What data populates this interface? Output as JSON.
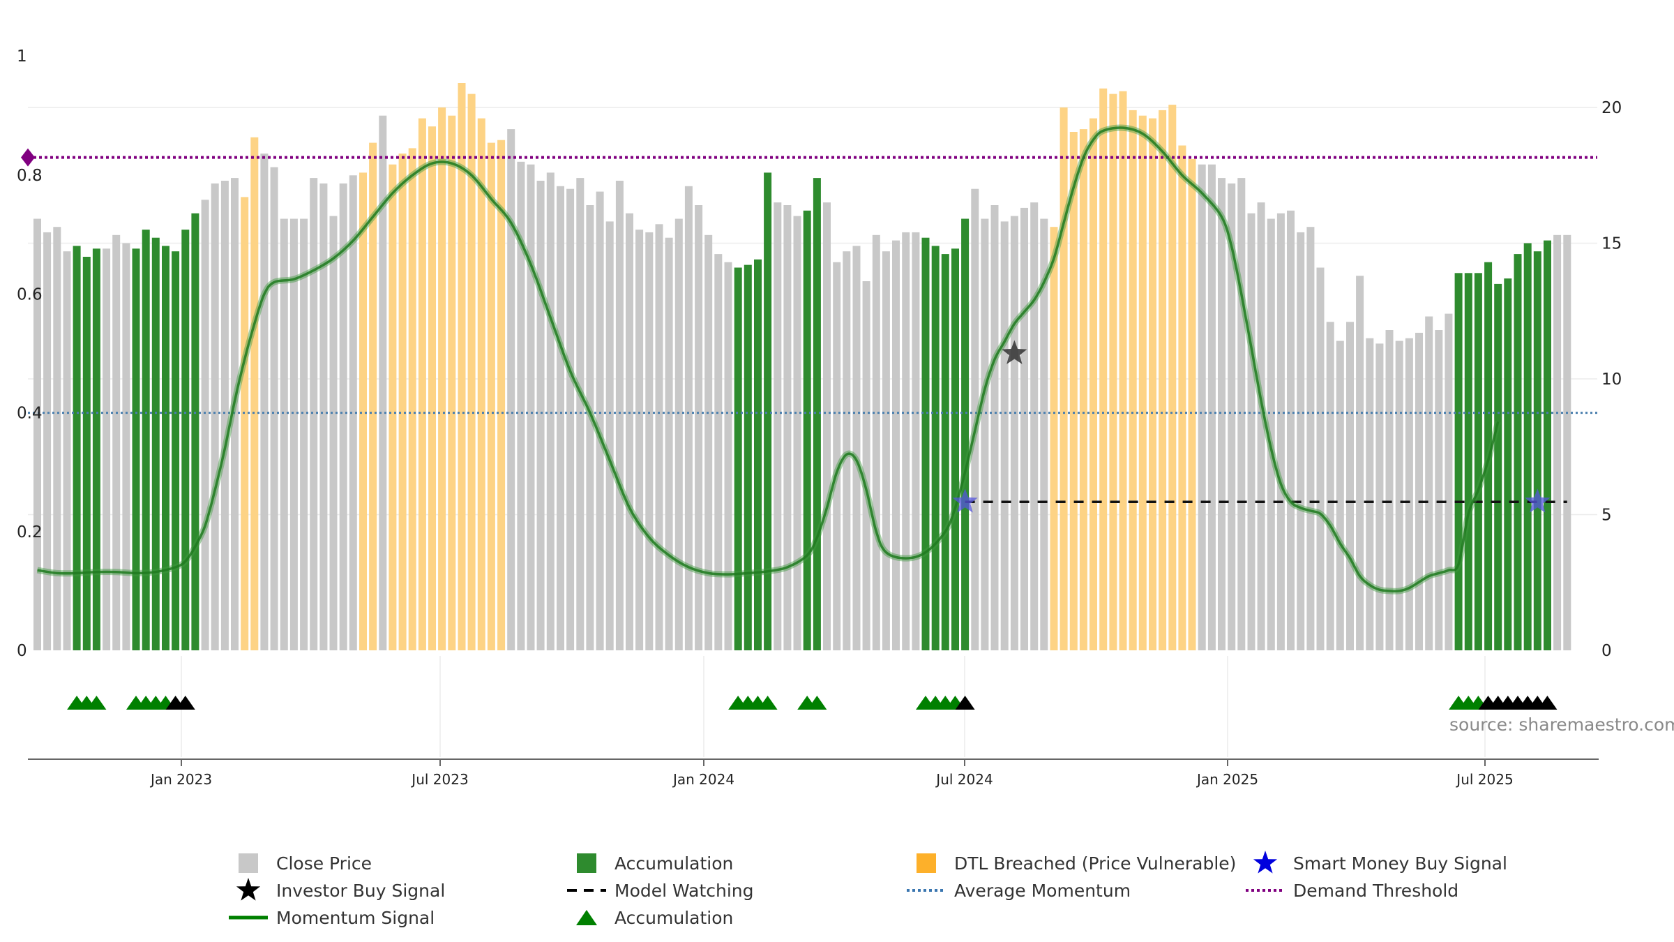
{
  "chart_data": {
    "type": "bar",
    "title": "",
    "x_tick_labels": [
      "Jan 2023",
      "Jul 2023",
      "Jan 2024",
      "Jul 2024",
      "Jan 2025",
      "Jul 2025"
    ],
    "left_axis": {
      "range": [
        0,
        1
      ],
      "tick_labels": [
        "0",
        "0.2",
        "0.4",
        "0.6",
        "0.8",
        "1"
      ]
    },
    "right_axis": {
      "range": [
        0,
        22
      ],
      "tick_labels": [
        "0",
        "5",
        "10",
        "15",
        "20"
      ]
    },
    "colors": {
      "close": "#c8c8c8",
      "accumulation": "#2e8b2e",
      "dtl": "#fdd385",
      "momentum": "#1f7a1f",
      "avg": "#4a7fae",
      "demand": "#800080",
      "smart_money": "#0000cc"
    },
    "close_price": [
      15.9,
      15.4,
      15.6,
      14.7,
      14.9,
      14.5,
      14.8,
      14.8,
      15.3,
      15.0,
      14.8,
      15.5,
      15.2,
      14.9,
      14.7,
      15.5,
      16.1,
      16.6,
      17.2,
      17.3,
      17.4,
      16.7,
      18.9,
      18.3,
      17.8,
      15.9,
      15.9,
      15.9,
      17.4,
      17.2,
      16.0,
      17.2,
      17.5,
      17.6,
      18.7,
      19.7,
      17.9,
      18.3,
      18.5,
      19.6,
      19.3,
      20.0,
      19.7,
      20.9,
      20.5,
      19.6,
      18.7,
      18.8,
      19.2,
      18.0,
      17.9,
      17.3,
      17.6,
      17.1,
      17.0,
      17.4,
      16.4,
      16.9,
      15.8,
      17.3,
      16.1,
      15.5,
      15.4,
      15.7,
      15.2,
      15.9,
      17.1,
      16.4,
      15.3,
      14.6,
      14.3,
      14.1,
      14.2,
      14.4,
      17.6,
      16.5,
      16.4,
      16.0,
      16.2,
      17.4,
      16.5,
      14.3,
      14.7,
      14.9,
      13.6,
      15.3,
      14.7,
      15.1,
      15.4,
      15.4,
      15.2,
      14.9,
      14.6,
      14.8,
      15.9,
      17.0,
      15.9,
      16.4,
      15.8,
      16.0,
      16.3,
      16.5,
      15.9,
      15.6,
      20.0,
      19.1,
      19.2,
      19.6,
      20.7,
      20.5,
      20.6,
      19.9,
      19.7,
      19.6,
      19.9,
      20.1,
      18.6,
      18.1,
      17.9,
      17.9,
      17.4,
      17.2,
      17.4,
      16.1,
      16.5,
      15.9,
      16.1,
      16.2,
      15.4,
      15.6,
      14.1,
      12.1,
      11.4,
      12.1,
      13.8,
      11.5,
      11.3,
      11.8,
      11.4,
      11.5,
      11.7,
      12.3,
      11.8,
      12.4,
      13.9,
      13.9,
      13.9,
      14.3,
      13.5,
      13.7,
      14.6,
      15.0,
      14.7,
      15.1,
      15.3,
      15.3
    ],
    "accumulation_bars": [
      4,
      5,
      6,
      10,
      11,
      12,
      13,
      14,
      15,
      16,
      71,
      72,
      73,
      74,
      78,
      79,
      90,
      91,
      92,
      93,
      94
    ],
    "dtl_bars": [
      21,
      22,
      33,
      34,
      36,
      37,
      38,
      39,
      40,
      41,
      42,
      43,
      44,
      45,
      46,
      47,
      103,
      104,
      105,
      106,
      107,
      108,
      109,
      110,
      111,
      112,
      113,
      114,
      115,
      116,
      117
    ],
    "late_accumulation_bars": [
      144,
      145,
      146,
      147,
      148,
      149,
      150,
      151,
      152,
      153
    ],
    "momentum_signal": [
      [
        0,
        0.135
      ],
      [
        2,
        0.13
      ],
      [
        4,
        0.13
      ],
      [
        6,
        0.132
      ],
      [
        8,
        0.132
      ],
      [
        10,
        0.13
      ],
      [
        12,
        0.132
      ],
      [
        14,
        0.14
      ],
      [
        15,
        0.15
      ],
      [
        16,
        0.175
      ],
      [
        17,
        0.21
      ],
      [
        18,
        0.27
      ],
      [
        19,
        0.34
      ],
      [
        20,
        0.42
      ],
      [
        21,
        0.49
      ],
      [
        22,
        0.55
      ],
      [
        23,
        0.6
      ],
      [
        24,
        0.62
      ],
      [
        26,
        0.625
      ],
      [
        28,
        0.64
      ],
      [
        30,
        0.66
      ],
      [
        32,
        0.69
      ],
      [
        34,
        0.73
      ],
      [
        36,
        0.77
      ],
      [
        38,
        0.8
      ],
      [
        40,
        0.82
      ],
      [
        42,
        0.82
      ],
      [
        44,
        0.8
      ],
      [
        46,
        0.76
      ],
      [
        48,
        0.72
      ],
      [
        50,
        0.65
      ],
      [
        52,
        0.56
      ],
      [
        54,
        0.47
      ],
      [
        56,
        0.4
      ],
      [
        58,
        0.32
      ],
      [
        60,
        0.24
      ],
      [
        62,
        0.19
      ],
      [
        64,
        0.16
      ],
      [
        66,
        0.14
      ],
      [
        68,
        0.13
      ],
      [
        70,
        0.128
      ],
      [
        72,
        0.13
      ],
      [
        74,
        0.133
      ],
      [
        76,
        0.14
      ],
      [
        78,
        0.16
      ],
      [
        79,
        0.19
      ],
      [
        80,
        0.24
      ],
      [
        81,
        0.3
      ],
      [
        82,
        0.33
      ],
      [
        83,
        0.32
      ],
      [
        84,
        0.27
      ],
      [
        85,
        0.2
      ],
      [
        86,
        0.165
      ],
      [
        88,
        0.155
      ],
      [
        90,
        0.165
      ],
      [
        92,
        0.2
      ],
      [
        93,
        0.24
      ],
      [
        94,
        0.3
      ],
      [
        95,
        0.37
      ],
      [
        96,
        0.44
      ],
      [
        97,
        0.49
      ],
      [
        98,
        0.52
      ],
      [
        99,
        0.55
      ],
      [
        100,
        0.57
      ],
      [
        101,
        0.59
      ],
      [
        102,
        0.62
      ],
      [
        103,
        0.66
      ],
      [
        104,
        0.72
      ],
      [
        105,
        0.78
      ],
      [
        106,
        0.83
      ],
      [
        107,
        0.86
      ],
      [
        108,
        0.875
      ],
      [
        110,
        0.88
      ],
      [
        112,
        0.87
      ],
      [
        114,
        0.84
      ],
      [
        116,
        0.8
      ],
      [
        118,
        0.77
      ],
      [
        120,
        0.73
      ],
      [
        121,
        0.68
      ],
      [
        122,
        0.6
      ],
      [
        123,
        0.51
      ],
      [
        124,
        0.42
      ],
      [
        125,
        0.34
      ],
      [
        126,
        0.28
      ],
      [
        127,
        0.25
      ],
      [
        128,
        0.24
      ],
      [
        129,
        0.235
      ],
      [
        130,
        0.23
      ],
      [
        131,
        0.21
      ],
      [
        132,
        0.18
      ],
      [
        133,
        0.155
      ],
      [
        134,
        0.125
      ],
      [
        135,
        0.11
      ],
      [
        136,
        0.102
      ],
      [
        137,
        0.1
      ],
      [
        138,
        0.1
      ],
      [
        139,
        0.105
      ],
      [
        140,
        0.115
      ],
      [
        141,
        0.125
      ],
      [
        142,
        0.13
      ],
      [
        143,
        0.135
      ],
      [
        144,
        0.145
      ],
      [
        145,
        0.23
      ],
      [
        146,
        0.27
      ],
      [
        147,
        0.32
      ],
      [
        148,
        0.385
      ]
    ],
    "average_momentum": 0.4,
    "demand_threshold": 0.83,
    "model_watching": {
      "level": 0.25,
      "from_bar": 94,
      "to_bar": 155
    },
    "investor_buy_signals": [
      [
        99,
        0.5
      ]
    ],
    "smart_money_buy_signals": [
      [
        94,
        0.25
      ],
      [
        152,
        0.25
      ]
    ],
    "accumulation_triangles_green": [
      4,
      5,
      6,
      10,
      11,
      12,
      13,
      71,
      72,
      73,
      74,
      78,
      79,
      90,
      91,
      92,
      93,
      144,
      145,
      146
    ],
    "accumulation_triangles_black": [
      14,
      15,
      94,
      147,
      148,
      149,
      150,
      151,
      152,
      153
    ],
    "legend": [
      {
        "symbol": "square-grey",
        "label": "Close Price"
      },
      {
        "symbol": "square-green",
        "label": "Accumulation"
      },
      {
        "symbol": "square-orange",
        "label": "DTL Breached (Price Vulnerable)"
      },
      {
        "symbol": "star-blue",
        "label": "Smart Money Buy Signal"
      },
      {
        "symbol": "star-black",
        "label": "Investor Buy Signal"
      },
      {
        "symbol": "dash-black",
        "label": "Model Watching"
      },
      {
        "symbol": "dot-blue",
        "label": "Average Momentum"
      },
      {
        "symbol": "dot-purple",
        "label": "Demand Threshold"
      },
      {
        "symbol": "line-green",
        "label": "Momentum Signal"
      },
      {
        "symbol": "triangle-green",
        "label": "Accumulation"
      }
    ],
    "source": "source: sharemaestro.com"
  }
}
